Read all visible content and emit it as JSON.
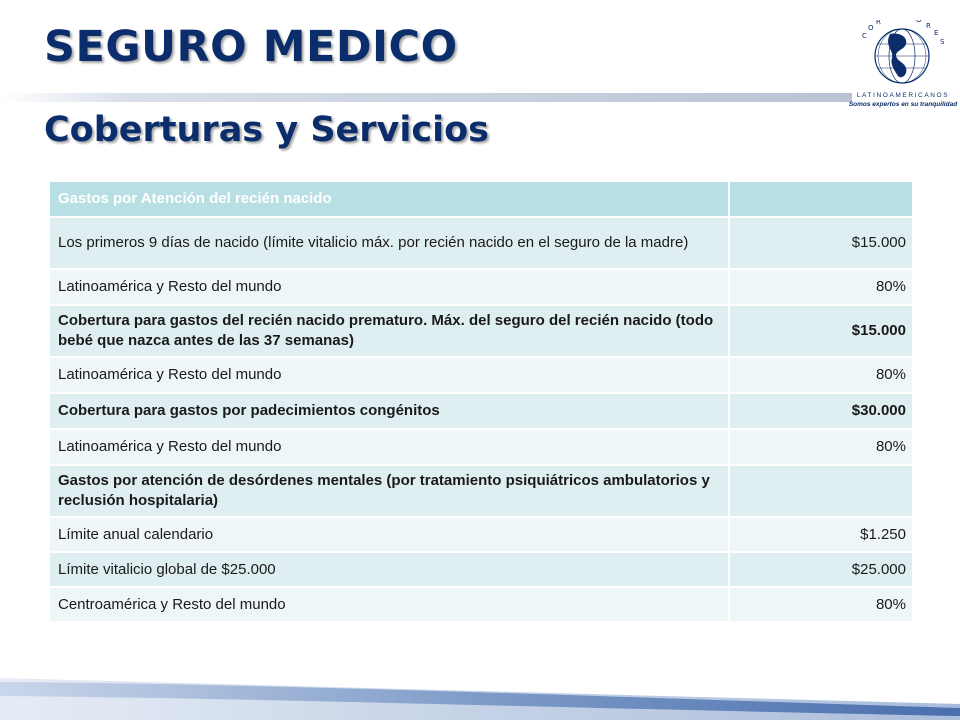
{
  "header": {
    "title": "SEGURO MEDICO",
    "subtitle": "Coberturas y Servicios"
  },
  "logo": {
    "ring_text": "CORREDORES",
    "name": "LATINOAMERICANOS",
    "slogan": "Somos expertos en su tranquilidad",
    "icon": "globe-icon"
  },
  "table": {
    "header": {
      "label": "Gastos por Atención del recién nacido",
      "value": ""
    },
    "rows": [
      {
        "label": "Los primeros 9 días de nacido (límite vitalicio máx. por recién nacido en el seguro de la madre)",
        "value": "$15.000"
      },
      {
        "label": "Latinoamérica y Resto del mundo",
        "value": "80%"
      },
      {
        "label": "Cobertura para gastos del recién nacido prematuro.  Máx. del seguro del recién nacido (todo bebé que nazca antes de las 37 semanas)",
        "value": "$15.000"
      },
      {
        "label": "Latinoamérica y Resto del mundo",
        "value": "80%"
      },
      {
        "label": "Cobertura para gastos por padecimientos congénitos",
        "value": "$30.000"
      },
      {
        "label": "Latinoamérica y Resto del mundo",
        "value": "80%"
      },
      {
        "label": "Gastos por atención de desórdenes mentales (por tratamiento psiquiátricos ambulatorios y reclusión hospitalaria)",
        "value": ""
      },
      {
        "label": "Límite anual calendario",
        "value": "$1.250"
      },
      {
        "label": "Límite vitalicio global de $25.000",
        "value": "$25.000"
      },
      {
        "label": "Centroamérica y Resto del mundo",
        "value": "80%"
      }
    ]
  },
  "colors": {
    "title": "#0c2d6b",
    "header_row": "#b8e0e4",
    "row_dark": "#dfeff1",
    "row_light": "#eff6f8",
    "swoosh": "#5b7fb8"
  }
}
